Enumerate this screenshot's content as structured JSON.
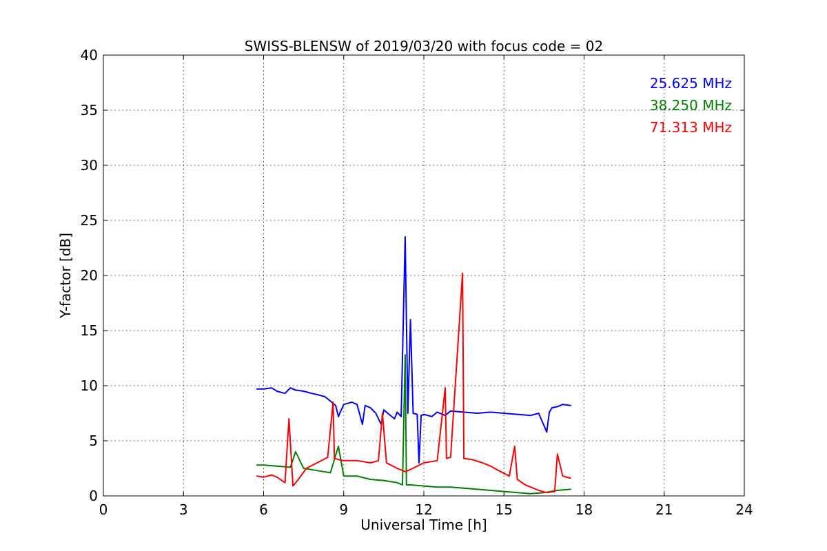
{
  "chart_data": {
    "type": "line",
    "title": "SWISS-BLENSW of 2019/03/20 with focus code = 02",
    "xlabel": "Universal Time [h]",
    "ylabel": "Y-factor [dB]",
    "xlim": [
      0,
      24
    ],
    "ylim": [
      0,
      40
    ],
    "xticks": [
      "0",
      "3",
      "6",
      "9",
      "12",
      "15",
      "18",
      "21",
      "24"
    ],
    "yticks": [
      "0",
      "5",
      "10",
      "15",
      "20",
      "25",
      "30",
      "35",
      "40"
    ],
    "grid": true,
    "legend_position": "top-right",
    "series": [
      {
        "name": "25.625 MHz",
        "color": "#0000ff",
        "x": [
          5.75,
          6.0,
          6.3,
          6.5,
          6.8,
          7.0,
          7.2,
          7.5,
          7.8,
          8.0,
          8.3,
          8.5,
          8.7,
          8.8,
          9.0,
          9.3,
          9.5,
          9.7,
          9.8,
          10.0,
          10.2,
          10.4,
          10.5,
          10.7,
          10.9,
          11.0,
          11.15,
          11.3,
          11.4,
          11.5,
          11.6,
          11.75,
          11.82,
          11.9,
          12.0,
          12.3,
          12.5,
          12.8,
          13.0,
          13.5,
          14.0,
          14.5,
          15.0,
          15.5,
          16.0,
          16.3,
          16.6,
          16.7,
          16.8,
          17.0,
          17.2,
          17.5
        ],
        "y": [
          9.7,
          9.7,
          9.8,
          9.5,
          9.3,
          9.8,
          9.6,
          9.5,
          9.3,
          9.2,
          9.0,
          8.6,
          8.2,
          7.2,
          8.3,
          8.5,
          8.3,
          6.5,
          8.2,
          8.0,
          7.5,
          6.5,
          7.8,
          7.4,
          7.0,
          7.6,
          7.2,
          23.5,
          7.5,
          16.0,
          7.5,
          7.4,
          3.0,
          7.3,
          7.4,
          7.2,
          7.6,
          7.3,
          7.7,
          7.6,
          7.5,
          7.6,
          7.5,
          7.4,
          7.3,
          7.5,
          5.8,
          7.6,
          8.0,
          8.1,
          8.3,
          8.2
        ]
      },
      {
        "name": "38.250 MHz",
        "color": "#008000",
        "x": [
          5.75,
          6.0,
          6.5,
          7.0,
          7.2,
          7.5,
          8.0,
          8.5,
          8.8,
          9.0,
          9.5,
          10.0,
          10.5,
          11.0,
          11.2,
          11.3,
          11.35,
          11.5,
          12.0,
          12.5,
          13.0,
          13.5,
          14.0,
          14.5,
          15.0,
          15.5,
          16.0,
          16.5,
          17.0,
          17.5
        ],
        "y": [
          2.8,
          2.8,
          2.7,
          2.6,
          4.0,
          2.5,
          2.3,
          2.1,
          4.5,
          1.8,
          1.8,
          1.5,
          1.4,
          1.2,
          1.0,
          12.8,
          1.0,
          1.0,
          0.9,
          0.8,
          0.8,
          0.7,
          0.6,
          0.5,
          0.4,
          0.3,
          0.2,
          0.3,
          0.5,
          0.6
        ]
      },
      {
        "name": "71.313 MHz",
        "color": "#ff0000",
        "x": [
          5.75,
          6.0,
          6.3,
          6.5,
          6.8,
          6.95,
          7.1,
          7.3,
          7.6,
          8.0,
          8.4,
          8.6,
          8.65,
          8.8,
          9.0,
          9.5,
          10.0,
          10.3,
          10.45,
          10.6,
          11.0,
          11.3,
          11.5,
          12.0,
          12.5,
          12.8,
          12.85,
          13.0,
          13.45,
          13.5,
          13.8,
          14.2,
          14.5,
          14.8,
          15.2,
          15.4,
          15.5,
          15.8,
          16.0,
          16.3,
          16.6,
          16.9,
          17.0,
          17.2,
          17.5
        ],
        "y": [
          1.8,
          1.7,
          1.9,
          1.7,
          1.2,
          7.0,
          0.9,
          1.5,
          2.5,
          3.0,
          3.5,
          8.5,
          3.4,
          3.3,
          3.2,
          3.2,
          3.0,
          3.2,
          7.5,
          3.0,
          2.5,
          2.2,
          2.4,
          3.0,
          3.2,
          9.8,
          3.4,
          3.5,
          20.2,
          3.4,
          3.3,
          3.0,
          2.7,
          2.3,
          1.8,
          4.5,
          1.5,
          1.0,
          0.8,
          0.5,
          0.3,
          0.4,
          3.8,
          1.8,
          1.6
        ]
      }
    ]
  }
}
